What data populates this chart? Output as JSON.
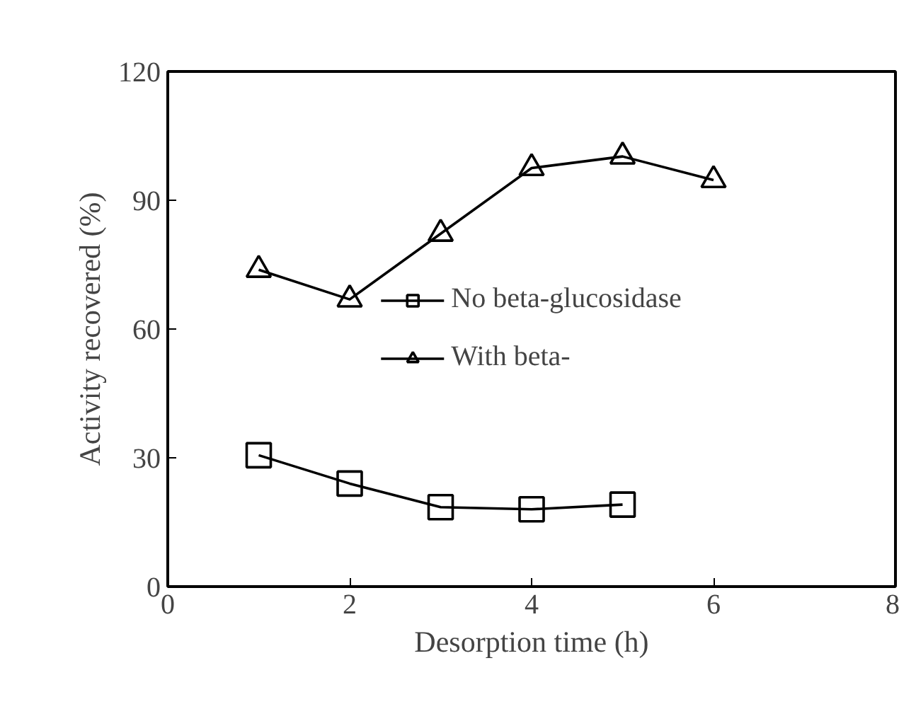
{
  "chart_data": {
    "type": "line",
    "xlabel": "Desorption time (h)",
    "ylabel": "Activity recovered (%)",
    "xlim": [
      0,
      8
    ],
    "xticks": [
      0,
      2,
      4,
      6,
      8
    ],
    "ylim": [
      0,
      120
    ],
    "yticks": [
      0,
      30,
      60,
      90,
      120
    ],
    "grid": false,
    "legend": "center",
    "line_style": "solid",
    "series": [
      {
        "name": "No beta-glucosidase",
        "color": "#000000",
        "marker": "square",
        "x": [
          1,
          2,
          3,
          4,
          5
        ],
        "values": [
          30.6,
          24,
          18.5,
          18,
          19.1
        ]
      },
      {
        "name": "With beta-",
        "color": "#000000",
        "marker": "triangle",
        "x": [
          1,
          2,
          3,
          4,
          5,
          6
        ],
        "values": [
          73.8,
          66.9,
          82.2,
          97.5,
          100.2,
          94.7
        ]
      }
    ]
  }
}
